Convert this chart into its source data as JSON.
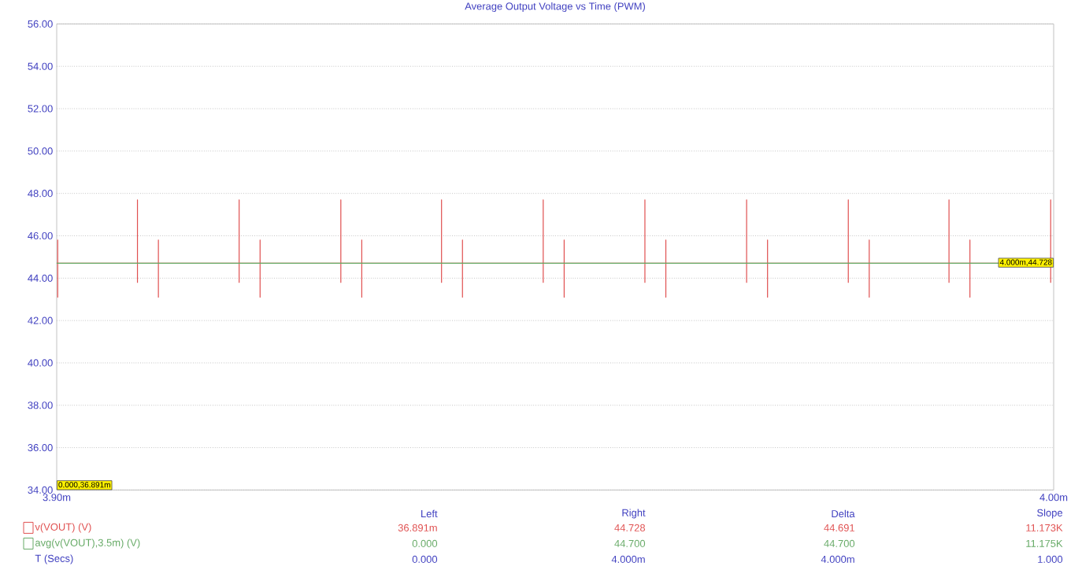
{
  "chart_data": {
    "type": "line",
    "title": "Average Output Voltage vs Time (PWM)",
    "xlim": [
      3.9,
      4.0
    ],
    "xticks": [
      {
        "value": 3.9,
        "label": "3.90m"
      },
      {
        "value": 4.0,
        "label": "4.00m"
      }
    ],
    "ylim": [
      34,
      56
    ],
    "yticks": [
      {
        "value": 34,
        "label": "34.00"
      },
      {
        "value": 36,
        "label": "36.00"
      },
      {
        "value": 38,
        "label": "38.00"
      },
      {
        "value": 40,
        "label": "40.00"
      },
      {
        "value": 42,
        "label": "42.00"
      },
      {
        "value": 44,
        "label": "44.00"
      },
      {
        "value": 46,
        "label": "46.00"
      },
      {
        "value": 48,
        "label": "48.00"
      },
      {
        "value": 50,
        "label": "50.00"
      },
      {
        "value": 52,
        "label": "52.00"
      },
      {
        "value": 54,
        "label": "54.00"
      },
      {
        "value": 56,
        "label": "56.00"
      }
    ],
    "grid": "y",
    "legend": "bottom left",
    "marker": "none",
    "line_style": "solid",
    "series": [
      {
        "name": "v(VOUT) (V)",
        "color": "#e05050",
        "x": [
          3.9,
          3.9001,
          3.9001,
          3.9001,
          3.9001,
          3.9081,
          3.9081,
          3.9081,
          3.9081,
          3.9102,
          3.9102,
          3.9102,
          3.9102,
          3.9183,
          3.9183,
          3.9183,
          3.9183,
          3.9204,
          3.9204,
          3.9204,
          3.9204,
          3.9285,
          3.9285,
          3.9285,
          3.9285,
          3.9306,
          3.9306,
          3.9306,
          3.9306,
          3.9386,
          3.9386,
          3.9386,
          3.9386,
          3.9407,
          3.9407,
          3.9407,
          3.9407,
          3.9488,
          3.9488,
          3.9488,
          3.9488,
          3.9509,
          3.9509,
          3.9509,
          3.9509,
          3.959,
          3.959,
          3.959,
          3.959,
          3.9611,
          3.9611,
          3.9611,
          3.9611,
          3.9692,
          3.9692,
          3.9692,
          3.9692,
          3.9713,
          3.9713,
          3.9713,
          3.9713,
          3.9794,
          3.9794,
          3.9794,
          3.9794,
          3.9815,
          3.9815,
          3.9815,
          3.9815,
          3.9895,
          3.9895,
          3.9895,
          3.9895,
          3.9916,
          3.9916,
          3.9916,
          3.9916,
          3.9997,
          3.9997,
          3.9997,
          3.9997,
          4.0
        ],
        "values": [
          44.7,
          44.7,
          45.8,
          43.1,
          44.7,
          44.7,
          47.7,
          43.8,
          44.7,
          44.7,
          45.8,
          43.1,
          44.7,
          44.7,
          47.7,
          43.8,
          44.7,
          44.7,
          45.8,
          43.1,
          44.7,
          44.7,
          47.7,
          43.8,
          44.7,
          44.7,
          45.8,
          43.1,
          44.7,
          44.7,
          47.7,
          43.8,
          44.7,
          44.7,
          45.8,
          43.1,
          44.7,
          44.7,
          47.7,
          43.8,
          44.7,
          44.7,
          45.8,
          43.1,
          44.7,
          44.7,
          47.7,
          43.8,
          44.7,
          44.7,
          45.8,
          43.1,
          44.7,
          44.7,
          47.7,
          43.8,
          44.7,
          44.7,
          45.8,
          43.1,
          44.7,
          44.7,
          47.7,
          43.8,
          44.7,
          44.7,
          45.8,
          43.1,
          44.7,
          44.7,
          47.7,
          43.8,
          44.7,
          44.7,
          45.8,
          43.1,
          44.7,
          44.7,
          47.7,
          43.8,
          44.73,
          44.73
        ]
      },
      {
        "name": "avg(v(VOUT),3.5m) (V)",
        "color": "#66aa66",
        "x": [
          3.9,
          4.0
        ],
        "values": [
          44.7,
          44.7
        ]
      }
    ],
    "annotations": [
      "0.000,36.891m",
      {
        "text": "4.000m,44.728",
        "x": 4.0,
        "y": 44.73
      },
      "Left",
      "Right",
      "Delta",
      "Slope",
      "36.891m",
      "44.728",
      "44.691",
      "11.173K",
      "0.000",
      "44.700",
      "44.700",
      "11.175K",
      "0.000",
      "4.000m",
      "4.000m",
      "1.000",
      "T (Secs)"
    ]
  }
}
